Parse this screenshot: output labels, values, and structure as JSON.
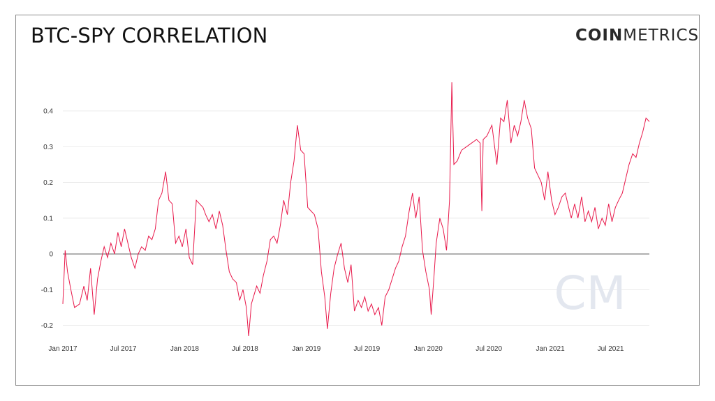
{
  "header": {
    "title": "BTC-SPY CORRELATION",
    "logo_bold": "COIN",
    "logo_light": "METRICS",
    "watermark": "CM"
  },
  "colors": {
    "line": "#e8184a",
    "zero_line": "#555555",
    "grid": "#e6e6e6",
    "watermark": "#e3e7ef"
  },
  "chart_data": {
    "type": "line",
    "title": "BTC-SPY CORRELATION",
    "xlabel": "",
    "ylabel": "",
    "grid": "horizontal",
    "legend": "none",
    "xlim": [
      "2017-01-01",
      "2021-10-25"
    ],
    "ylim": [
      -0.23,
      0.48
    ],
    "y_ticks": [
      -0.2,
      -0.1,
      0,
      0.1,
      0.2,
      0.3,
      0.4
    ],
    "y_tick_labels": [
      "-0.2",
      "-0.1",
      "0",
      "0.1",
      "0.2",
      "0.3",
      "0.4"
    ],
    "x_ticks": [
      "2017-01-01",
      "2017-07-01",
      "2018-01-01",
      "2018-07-01",
      "2019-01-01",
      "2019-07-01",
      "2020-01-01",
      "2020-07-01",
      "2021-01-01",
      "2021-07-01"
    ],
    "x_tick_labels": [
      "Jan 2017",
      "Jul 2017",
      "Jan 2018",
      "Jul 2018",
      "Jan 2019",
      "Jul 2019",
      "Jan 2020",
      "Jul 2020",
      "Jan 2021",
      "Jul 2021"
    ],
    "series": [
      {
        "points": [
          [
            "2017-01-01",
            -0.14
          ],
          [
            "2017-01-08",
            0.01
          ],
          [
            "2017-01-15",
            -0.05
          ],
          [
            "2017-01-25",
            -0.1
          ],
          [
            "2017-02-05",
            -0.15
          ],
          [
            "2017-02-20",
            -0.14
          ],
          [
            "2017-03-05",
            -0.09
          ],
          [
            "2017-03-15",
            -0.13
          ],
          [
            "2017-03-25",
            -0.04
          ],
          [
            "2017-04-05",
            -0.17
          ],
          [
            "2017-04-15",
            -0.07
          ],
          [
            "2017-04-25",
            -0.02
          ],
          [
            "2017-05-05",
            0.02
          ],
          [
            "2017-05-15",
            -0.01
          ],
          [
            "2017-05-25",
            0.03
          ],
          [
            "2017-06-05",
            0.0
          ],
          [
            "2017-06-15",
            0.06
          ],
          [
            "2017-06-25",
            0.02
          ],
          [
            "2017-07-05",
            0.07
          ],
          [
            "2017-07-15",
            0.03
          ],
          [
            "2017-07-25",
            -0.01
          ],
          [
            "2017-08-05",
            -0.04
          ],
          [
            "2017-08-15",
            0.0
          ],
          [
            "2017-08-25",
            0.02
          ],
          [
            "2017-09-05",
            0.01
          ],
          [
            "2017-09-15",
            0.05
          ],
          [
            "2017-09-25",
            0.04
          ],
          [
            "2017-10-05",
            0.07
          ],
          [
            "2017-10-15",
            0.15
          ],
          [
            "2017-10-25",
            0.17
          ],
          [
            "2017-11-05",
            0.23
          ],
          [
            "2017-11-15",
            0.15
          ],
          [
            "2017-11-25",
            0.14
          ],
          [
            "2017-12-05",
            0.03
          ],
          [
            "2017-12-15",
            0.05
          ],
          [
            "2017-12-25",
            0.02
          ],
          [
            "2018-01-05",
            0.07
          ],
          [
            "2018-01-15",
            -0.01
          ],
          [
            "2018-01-25",
            -0.03
          ],
          [
            "2018-02-05",
            0.15
          ],
          [
            "2018-02-15",
            0.14
          ],
          [
            "2018-02-25",
            0.13
          ],
          [
            "2018-03-05",
            0.11
          ],
          [
            "2018-03-15",
            0.09
          ],
          [
            "2018-03-25",
            0.11
          ],
          [
            "2018-04-05",
            0.07
          ],
          [
            "2018-04-15",
            0.12
          ],
          [
            "2018-04-25",
            0.08
          ],
          [
            "2018-05-05",
            0.01
          ],
          [
            "2018-05-15",
            -0.05
          ],
          [
            "2018-05-25",
            -0.07
          ],
          [
            "2018-06-05",
            -0.08
          ],
          [
            "2018-06-15",
            -0.13
          ],
          [
            "2018-06-25",
            -0.1
          ],
          [
            "2018-07-05",
            -0.15
          ],
          [
            "2018-07-12",
            -0.23
          ],
          [
            "2018-07-20",
            -0.14
          ],
          [
            "2018-08-05",
            -0.09
          ],
          [
            "2018-08-15",
            -0.11
          ],
          [
            "2018-08-25",
            -0.06
          ],
          [
            "2018-09-05",
            -0.02
          ],
          [
            "2018-09-15",
            0.04
          ],
          [
            "2018-09-25",
            0.05
          ],
          [
            "2018-10-05",
            0.03
          ],
          [
            "2018-10-15",
            0.08
          ],
          [
            "2018-10-25",
            0.15
          ],
          [
            "2018-11-05",
            0.11
          ],
          [
            "2018-11-15",
            0.2
          ],
          [
            "2018-11-25",
            0.26
          ],
          [
            "2018-12-05",
            0.36
          ],
          [
            "2018-12-15",
            0.29
          ],
          [
            "2018-12-25",
            0.28
          ],
          [
            "2019-01-05",
            0.13
          ],
          [
            "2019-01-15",
            0.12
          ],
          [
            "2019-01-25",
            0.11
          ],
          [
            "2019-02-05",
            0.07
          ],
          [
            "2019-02-15",
            -0.05
          ],
          [
            "2019-02-25",
            -0.12
          ],
          [
            "2019-03-05",
            -0.21
          ],
          [
            "2019-03-15",
            -0.11
          ],
          [
            "2019-03-25",
            -0.04
          ],
          [
            "2019-04-05",
            0.0
          ],
          [
            "2019-04-15",
            0.03
          ],
          [
            "2019-04-25",
            -0.04
          ],
          [
            "2019-05-05",
            -0.08
          ],
          [
            "2019-05-15",
            -0.03
          ],
          [
            "2019-05-25",
            -0.16
          ],
          [
            "2019-06-05",
            -0.13
          ],
          [
            "2019-06-15",
            -0.15
          ],
          [
            "2019-06-25",
            -0.12
          ],
          [
            "2019-07-05",
            -0.16
          ],
          [
            "2019-07-15",
            -0.14
          ],
          [
            "2019-07-25",
            -0.17
          ],
          [
            "2019-08-05",
            -0.15
          ],
          [
            "2019-08-15",
            -0.2
          ],
          [
            "2019-08-25",
            -0.12
          ],
          [
            "2019-09-05",
            -0.1
          ],
          [
            "2019-09-15",
            -0.07
          ],
          [
            "2019-09-25",
            -0.04
          ],
          [
            "2019-10-05",
            -0.02
          ],
          [
            "2019-10-15",
            0.02
          ],
          [
            "2019-10-25",
            0.05
          ],
          [
            "2019-11-05",
            0.12
          ],
          [
            "2019-11-15",
            0.17
          ],
          [
            "2019-11-25",
            0.1
          ],
          [
            "2019-12-05",
            0.16
          ],
          [
            "2019-12-15",
            0.01
          ],
          [
            "2019-12-25",
            -0.05
          ],
          [
            "2020-01-05",
            -0.1
          ],
          [
            "2020-01-10",
            -0.17
          ],
          [
            "2020-01-18",
            -0.07
          ],
          [
            "2020-01-25",
            0.03
          ],
          [
            "2020-02-05",
            0.1
          ],
          [
            "2020-02-15",
            0.07
          ],
          [
            "2020-02-25",
            0.01
          ],
          [
            "2020-03-05",
            0.15
          ],
          [
            "2020-03-12",
            0.48
          ],
          [
            "2020-03-18",
            0.25
          ],
          [
            "2020-03-28",
            0.26
          ],
          [
            "2020-04-10",
            0.29
          ],
          [
            "2020-04-25",
            0.3
          ],
          [
            "2020-05-10",
            0.31
          ],
          [
            "2020-05-25",
            0.32
          ],
          [
            "2020-06-05",
            0.31
          ],
          [
            "2020-06-10",
            0.12
          ],
          [
            "2020-06-14",
            0.32
          ],
          [
            "2020-06-25",
            0.33
          ],
          [
            "2020-07-10",
            0.36
          ],
          [
            "2020-07-25",
            0.25
          ],
          [
            "2020-08-05",
            0.38
          ],
          [
            "2020-08-15",
            0.37
          ],
          [
            "2020-08-25",
            0.43
          ],
          [
            "2020-09-05",
            0.31
          ],
          [
            "2020-09-15",
            0.36
          ],
          [
            "2020-09-25",
            0.33
          ],
          [
            "2020-10-05",
            0.37
          ],
          [
            "2020-10-15",
            0.43
          ],
          [
            "2020-10-25",
            0.38
          ],
          [
            "2020-11-05",
            0.35
          ],
          [
            "2020-11-15",
            0.24
          ],
          [
            "2020-11-25",
            0.22
          ],
          [
            "2020-12-05",
            0.2
          ],
          [
            "2020-12-15",
            0.15
          ],
          [
            "2020-12-25",
            0.23
          ],
          [
            "2021-01-05",
            0.15
          ],
          [
            "2021-01-15",
            0.11
          ],
          [
            "2021-01-25",
            0.13
          ],
          [
            "2021-02-05",
            0.16
          ],
          [
            "2021-02-15",
            0.17
          ],
          [
            "2021-02-25",
            0.13
          ],
          [
            "2021-03-05",
            0.1
          ],
          [
            "2021-03-15",
            0.14
          ],
          [
            "2021-03-25",
            0.1
          ],
          [
            "2021-04-05",
            0.16
          ],
          [
            "2021-04-15",
            0.09
          ],
          [
            "2021-04-25",
            0.12
          ],
          [
            "2021-05-05",
            0.09
          ],
          [
            "2021-05-15",
            0.13
          ],
          [
            "2021-05-25",
            0.07
          ],
          [
            "2021-06-05",
            0.1
          ],
          [
            "2021-06-15",
            0.08
          ],
          [
            "2021-06-25",
            0.14
          ],
          [
            "2021-07-05",
            0.09
          ],
          [
            "2021-07-15",
            0.13
          ],
          [
            "2021-07-25",
            0.15
          ],
          [
            "2021-08-05",
            0.17
          ],
          [
            "2021-08-15",
            0.21
          ],
          [
            "2021-08-25",
            0.25
          ],
          [
            "2021-09-05",
            0.28
          ],
          [
            "2021-09-15",
            0.27
          ],
          [
            "2021-09-25",
            0.31
          ],
          [
            "2021-10-05",
            0.34
          ],
          [
            "2021-10-15",
            0.38
          ],
          [
            "2021-10-25",
            0.37
          ]
        ]
      }
    ]
  }
}
